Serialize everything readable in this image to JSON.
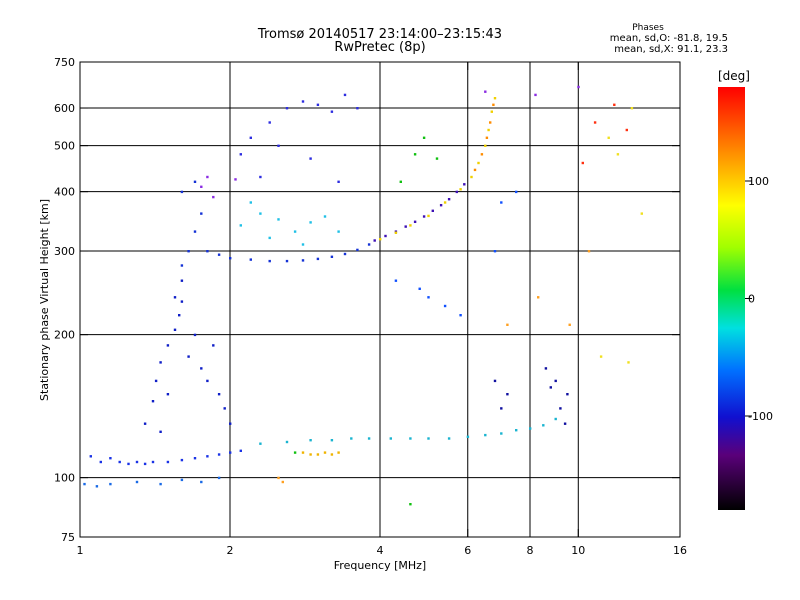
{
  "title": {
    "line1": "Tromsø 20140517 23:14:00–23:15:43",
    "line2": "RwPretec (8p)"
  },
  "stats": {
    "header": "Phases",
    "line_o": "mean, sd,O: -81.8, 19.5",
    "line_x": "mean, sd,X:  91.1, 23.3"
  },
  "colorbar": {
    "unit": "[deg]",
    "ticks": [
      {
        "value": 100,
        "label": "100"
      },
      {
        "value": 0,
        "label": "0"
      },
      {
        "value": -100,
        "label": "-100"
      }
    ],
    "range": [
      -180,
      180
    ]
  },
  "chart_data": {
    "type": "scatter",
    "title": "Tromsø 20140517 23:14:00–23:15:43",
    "subtitle": "RwPretec (8p)",
    "xlabel": "Frequency [MHz]",
    "ylabel": "Stationary phase Virtual Height [km]",
    "x_scale": "log",
    "y_scale": "log",
    "xlim": [
      1,
      16
    ],
    "ylim": [
      75,
      750
    ],
    "grid": true,
    "x_ticks": [
      {
        "v": 1,
        "label": "1"
      },
      {
        "v": 2,
        "label": "2"
      },
      {
        "v": 4,
        "label": "4"
      },
      {
        "v": 6,
        "label": "6"
      },
      {
        "v": 8,
        "label": "8"
      },
      {
        "v": 10,
        "label": "10"
      },
      {
        "v": 16,
        "label": "16"
      }
    ],
    "x_grid": [
      2,
      4,
      6,
      8,
      10
    ],
    "y_ticks": [
      {
        "v": 75,
        "label": "75"
      },
      {
        "v": 100,
        "label": "100"
      },
      {
        "v": 200,
        "label": "200"
      },
      {
        "v": 300,
        "label": "300"
      },
      {
        "v": 400,
        "label": "400"
      },
      {
        "v": 500,
        "label": "500"
      },
      {
        "v": 600,
        "label": "600"
      },
      {
        "v": 750,
        "label": "750"
      }
    ],
    "y_grid": [
      100,
      200,
      300,
      400,
      500,
      600
    ],
    "color_scale": "phase [deg], rainbow",
    "series": [
      {
        "color": "#1a33e6",
        "points": [
          [
            1.05,
            111
          ],
          [
            1.1,
            108
          ],
          [
            1.15,
            110
          ],
          [
            1.2,
            108
          ],
          [
            1.25,
            107
          ],
          [
            1.3,
            108
          ],
          [
            1.35,
            107
          ],
          [
            1.4,
            108
          ],
          [
            1.5,
            108
          ],
          [
            1.6,
            109
          ],
          [
            1.7,
            110
          ],
          [
            1.8,
            111
          ],
          [
            1.9,
            112
          ],
          [
            2.0,
            113
          ],
          [
            2.1,
            114
          ]
        ]
      },
      {
        "color": "#1a6ae6",
        "points": [
          [
            1.02,
            97
          ],
          [
            1.08,
            96
          ],
          [
            1.15,
            97
          ],
          [
            1.3,
            98
          ],
          [
            1.45,
            97
          ],
          [
            1.6,
            99
          ],
          [
            1.75,
            98
          ],
          [
            1.9,
            100
          ]
        ]
      },
      {
        "color": "#0f1fc7",
        "points": [
          [
            1.35,
            130
          ],
          [
            1.4,
            145
          ],
          [
            1.42,
            160
          ],
          [
            1.45,
            175
          ],
          [
            1.5,
            190
          ],
          [
            1.55,
            205
          ],
          [
            1.58,
            220
          ],
          [
            1.6,
            235
          ],
          [
            1.65,
            180
          ],
          [
            1.7,
            200
          ],
          [
            1.75,
            170
          ],
          [
            1.8,
            160
          ],
          [
            1.85,
            190
          ],
          [
            1.9,
            150
          ],
          [
            1.95,
            140
          ],
          [
            2.0,
            130
          ],
          [
            1.55,
            240
          ],
          [
            1.6,
            260
          ],
          [
            1.5,
            150
          ],
          [
            1.45,
            125
          ]
        ]
      },
      {
        "color": "#1432d6",
        "points": [
          [
            1.6,
            280
          ],
          [
            1.65,
            300
          ],
          [
            1.7,
            330
          ],
          [
            1.75,
            360
          ],
          [
            1.6,
            400
          ],
          [
            1.7,
            420
          ],
          [
            1.8,
            300
          ],
          [
            1.9,
            295
          ],
          [
            2.0,
            290
          ],
          [
            2.2,
            288
          ],
          [
            2.4,
            286
          ],
          [
            2.6,
            286
          ],
          [
            2.8,
            287
          ],
          [
            3.0,
            289
          ],
          [
            3.2,
            292
          ],
          [
            3.4,
            296
          ],
          [
            3.6,
            302
          ],
          [
            3.8,
            310
          ]
        ]
      },
      {
        "color": "#3d10b5",
        "points": [
          [
            3.9,
            316
          ],
          [
            4.1,
            323
          ],
          [
            4.3,
            330
          ],
          [
            4.5,
            338
          ],
          [
            4.7,
            346
          ],
          [
            4.9,
            355
          ],
          [
            5.1,
            365
          ],
          [
            5.3,
            375
          ],
          [
            5.5,
            386
          ],
          [
            5.7,
            400
          ],
          [
            5.9,
            415
          ]
        ]
      },
      {
        "color": "#f0d000",
        "points": [
          [
            4.0,
            318
          ],
          [
            4.3,
            328
          ],
          [
            4.6,
            340
          ],
          [
            5.0,
            356
          ],
          [
            5.4,
            380
          ],
          [
            5.8,
            405
          ],
          [
            6.1,
            430
          ],
          [
            6.3,
            460
          ],
          [
            6.5,
            500
          ],
          [
            6.6,
            540
          ],
          [
            6.7,
            590
          ],
          [
            6.8,
            630
          ]
        ]
      },
      {
        "color": "#ff8c00",
        "points": [
          [
            6.2,
            445
          ],
          [
            6.4,
            480
          ],
          [
            6.55,
            520
          ],
          [
            6.65,
            560
          ],
          [
            6.75,
            610
          ]
        ]
      },
      {
        "color": "#20c0e6",
        "points": [
          [
            2.1,
            340
          ],
          [
            2.3,
            360
          ],
          [
            2.5,
            350
          ],
          [
            2.7,
            330
          ],
          [
            2.9,
            345
          ],
          [
            3.1,
            355
          ],
          [
            2.4,
            320
          ],
          [
            2.8,
            310
          ],
          [
            3.3,
            330
          ],
          [
            2.2,
            380
          ]
        ]
      },
      {
        "color": "#2d2de0",
        "points": [
          [
            2.1,
            480
          ],
          [
            2.2,
            520
          ],
          [
            2.4,
            560
          ],
          [
            2.6,
            600
          ],
          [
            2.8,
            620
          ],
          [
            3.0,
            610
          ],
          [
            3.2,
            590
          ],
          [
            2.5,
            500
          ],
          [
            2.9,
            470
          ],
          [
            3.4,
            640
          ],
          [
            3.6,
            600
          ],
          [
            3.3,
            420
          ],
          [
            2.3,
            430
          ]
        ]
      },
      {
        "color": "#1ab4d0",
        "points": [
          [
            2.3,
            118
          ],
          [
            2.6,
            119
          ],
          [
            2.9,
            120
          ],
          [
            3.2,
            120
          ],
          [
            3.5,
            121
          ],
          [
            3.8,
            121
          ],
          [
            4.2,
            121
          ],
          [
            4.6,
            121
          ],
          [
            5.0,
            121
          ],
          [
            5.5,
            121
          ],
          [
            6.0,
            122
          ],
          [
            6.5,
            123
          ],
          [
            7.0,
            124
          ],
          [
            7.5,
            126
          ],
          [
            8.0,
            127
          ],
          [
            8.5,
            129
          ],
          [
            9.0,
            133
          ]
        ]
      },
      {
        "color": "#f0b400",
        "points": [
          [
            2.8,
            113
          ],
          [
            2.9,
            112
          ],
          [
            3.0,
            112
          ],
          [
            3.1,
            113
          ],
          [
            3.2,
            112
          ],
          [
            3.3,
            113
          ]
        ]
      },
      {
        "color": "#8a2be2",
        "points": [
          [
            1.75,
            410
          ],
          [
            1.8,
            430
          ],
          [
            1.85,
            390
          ],
          [
            2.05,
            425
          ],
          [
            6.5,
            650
          ],
          [
            10.0,
            665
          ],
          [
            8.2,
            640
          ]
        ]
      },
      {
        "color": "#10c010",
        "points": [
          [
            4.7,
            480
          ],
          [
            4.9,
            520
          ],
          [
            5.2,
            470
          ],
          [
            4.4,
            420
          ],
          [
            2.7,
            113
          ],
          [
            4.6,
            88
          ]
        ]
      },
      {
        "color": "#ff3010",
        "points": [
          [
            10.8,
            560
          ],
          [
            11.8,
            610
          ],
          [
            12.5,
            540
          ],
          [
            10.2,
            460
          ]
        ]
      },
      {
        "color": "#f0e020",
        "points": [
          [
            11.5,
            520
          ],
          [
            12.0,
            480
          ],
          [
            12.8,
            600
          ],
          [
            11.1,
            180
          ],
          [
            12.6,
            175
          ],
          [
            13.4,
            360
          ]
        ]
      },
      {
        "color": "#1010a0",
        "points": [
          [
            8.6,
            170
          ],
          [
            9.0,
            160
          ],
          [
            9.2,
            140
          ],
          [
            9.5,
            150
          ],
          [
            9.4,
            130
          ],
          [
            8.8,
            155
          ],
          [
            6.8,
            160
          ],
          [
            7.2,
            150
          ],
          [
            7.0,
            140
          ]
        ]
      },
      {
        "color": "#1050ff",
        "points": [
          [
            4.8,
            250
          ],
          [
            5.0,
            240
          ],
          [
            5.4,
            230
          ],
          [
            5.8,
            220
          ],
          [
            4.3,
            260
          ],
          [
            7.5,
            400
          ],
          [
            7.0,
            380
          ],
          [
            6.8,
            300
          ]
        ]
      },
      {
        "color": "#ffa020",
        "points": [
          [
            2.5,
            100
          ],
          [
            2.55,
            98
          ],
          [
            7.2,
            210
          ],
          [
            8.3,
            240
          ],
          [
            9.6,
            210
          ],
          [
            10.5,
            300
          ]
        ]
      }
    ]
  }
}
